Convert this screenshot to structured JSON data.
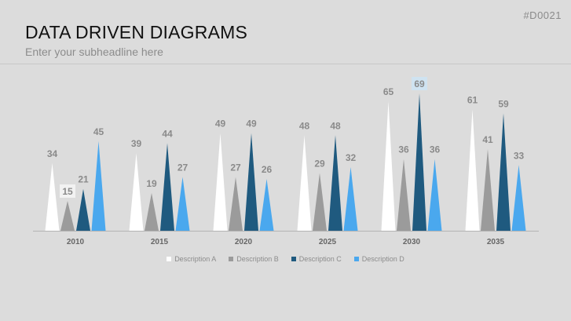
{
  "slide_id": "#D0021",
  "header": {
    "title": "DATA DRIVEN DIAGRAMS",
    "subtitle": "Enter your subheadline here"
  },
  "chart_data": {
    "type": "bar",
    "categories": [
      "2010",
      "2015",
      "2020",
      "2025",
      "2030",
      "2035"
    ],
    "series": [
      {
        "name": "Description A",
        "color": "#ffffff",
        "values": [
          34,
          39,
          49,
          48,
          65,
          61
        ]
      },
      {
        "name": "Description B",
        "color": "#9b9b9b",
        "values": [
          15,
          19,
          27,
          29,
          36,
          41
        ]
      },
      {
        "name": "Description C",
        "color": "#1f5a7f",
        "values": [
          21,
          44,
          49,
          48,
          69,
          59
        ]
      },
      {
        "name": "Description D",
        "color": "#4aa8ee",
        "values": [
          45,
          27,
          26,
          32,
          36,
          33
        ]
      }
    ],
    "ylim": [
      0,
      72
    ],
    "legend_position": "bottom",
    "highlighted_labels": [
      {
        "category": "2010",
        "series": "Description B"
      },
      {
        "category": "2030",
        "series": "Description C"
      }
    ]
  }
}
